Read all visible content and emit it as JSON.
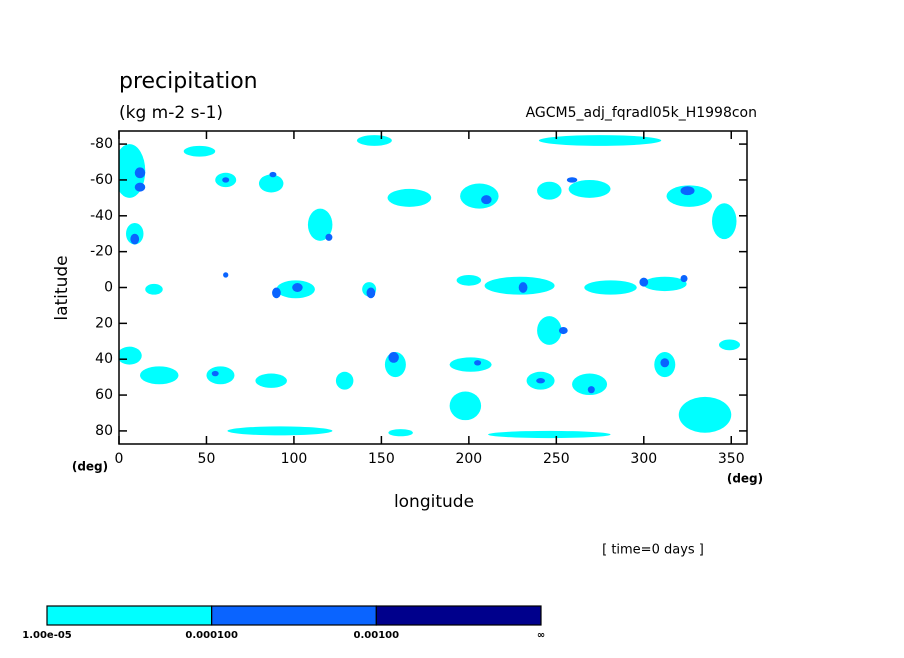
{
  "chart_data": {
    "type": "contour",
    "title": "precipitation",
    "subtitle": "(kg m-2 s-1)",
    "run_label": "AGCM5_adj_fqradl05k_H1998con",
    "x_label": "longitude",
    "y_label": "latitude",
    "x_unit": "(deg)",
    "y_unit": "(deg)",
    "time_label": "[ time=0 days ]",
    "xlim": [
      0,
      359
    ],
    "ylim": [
      87.3,
      -87.3
    ],
    "xticks": [
      0,
      50,
      100,
      150,
      200,
      250,
      300,
      350
    ],
    "yticks": [
      80,
      60,
      40,
      20,
      0,
      -20,
      -40,
      -60,
      -80
    ],
    "series": [
      {
        "name": "1.00e-05",
        "color": "#00ffff",
        "lon": [
          6,
          9,
          46,
          61,
          87,
          115,
          146,
          166,
          206,
          246,
          275,
          269,
          326,
          346,
          20,
          101,
          143,
          200,
          229,
          281,
          312,
          246,
          6,
          23,
          58,
          87,
          129,
          158,
          201,
          198,
          241,
          269,
          312,
          335,
          92,
          161,
          246,
          349
        ],
        "lat": [
          -65,
          -30,
          -76,
          -60,
          -58,
          -35,
          -82,
          -50,
          -51,
          -54,
          -82,
          -55,
          -51,
          -37,
          1,
          1,
          1,
          -4,
          -1,
          0,
          -2,
          24,
          38,
          49,
          49,
          52,
          52,
          43,
          43,
          66,
          52,
          54,
          43,
          71,
          80,
          81,
          82,
          32
        ],
        "width": [
          18,
          10,
          18,
          12,
          14,
          14,
          20,
          25,
          22,
          14,
          70,
          24,
          26,
          14,
          10,
          22,
          8,
          14,
          40,
          30,
          25,
          14,
          14,
          22,
          16,
          18,
          10,
          12,
          24,
          18,
          16,
          20,
          12,
          30,
          60,
          14,
          70,
          12
        ],
        "height": [
          30,
          12,
          6,
          8,
          10,
          18,
          6,
          10,
          14,
          10,
          6,
          10,
          12,
          20,
          6,
          10,
          8,
          6,
          10,
          8,
          8,
          16,
          10,
          10,
          10,
          8,
          10,
          14,
          8,
          16,
          10,
          12,
          14,
          20,
          5,
          4,
          4,
          6
        ]
      },
      {
        "name": "0.000100",
        "color": "#0a64ff",
        "lon": [
          12,
          12,
          9,
          61,
          88,
          120,
          210,
          259,
          325,
          61,
          90,
          102,
          144,
          231,
          300,
          323,
          254,
          157,
          205,
          241,
          270,
          312,
          55
        ],
        "lat": [
          -64,
          -56,
          -27,
          -60,
          -63,
          -28,
          -49,
          -60,
          -54,
          -7,
          3,
          0,
          3,
          0,
          -3,
          -5,
          24,
          39,
          42,
          52,
          57,
          42,
          48
        ],
        "width": [
          6,
          6,
          5,
          4,
          4,
          4,
          6,
          6,
          8,
          3,
          5,
          6,
          5,
          5,
          5,
          4,
          5,
          6,
          4,
          5,
          4,
          5,
          4
        ],
        "height": [
          6,
          5,
          6,
          3,
          3,
          4,
          5,
          3,
          5,
          3,
          6,
          5,
          6,
          6,
          5,
          4,
          4,
          6,
          3,
          3,
          4,
          5,
          3
        ]
      },
      {
        "name": "0.00100",
        "color": "#00008c",
        "lon": [],
        "lat": [],
        "width": [],
        "height": []
      }
    ],
    "colorbar_end": "∞"
  }
}
